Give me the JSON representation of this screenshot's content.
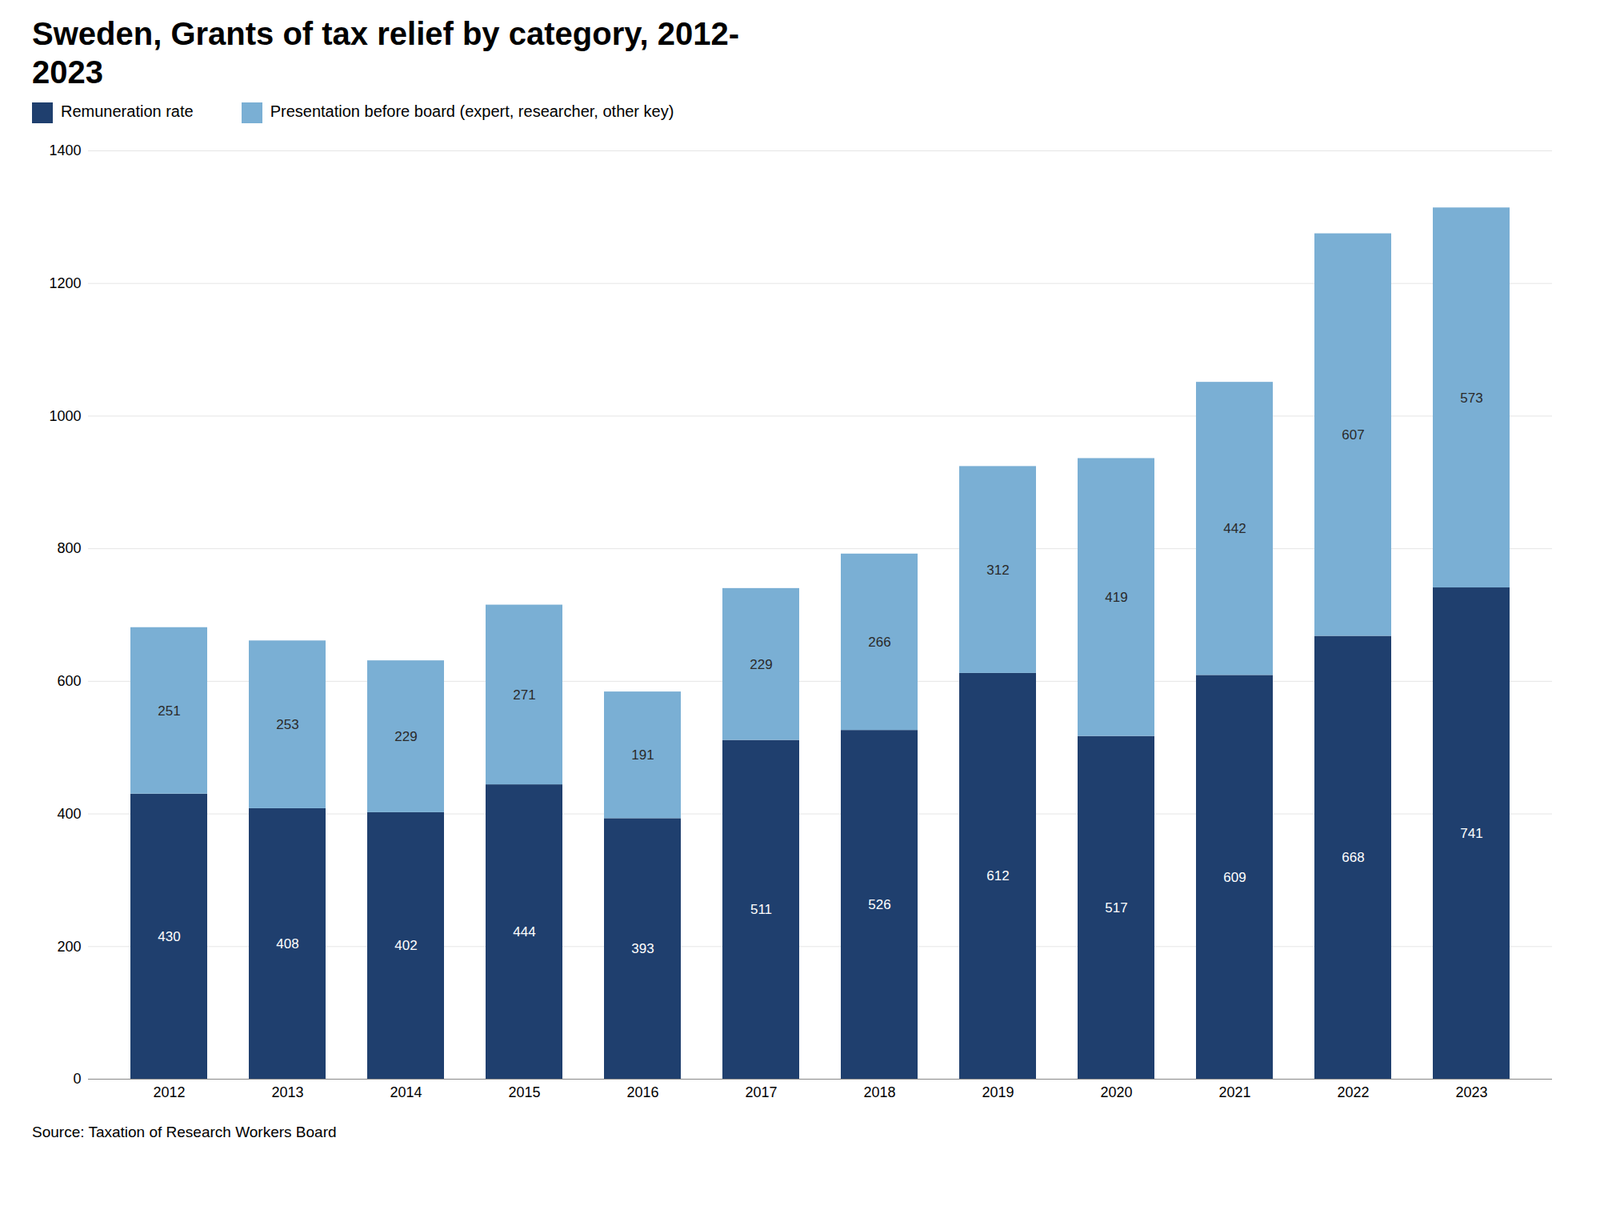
{
  "chart_data": {
    "type": "bar",
    "title": "Sweden, Grants of tax relief by category, 2012-\n2023",
    "caption": "Source: Taxation of Research Workers Board",
    "categories": [
      "2012",
      "2013",
      "2014",
      "2015",
      "2016",
      "2017",
      "2018",
      "2019",
      "2020",
      "2021",
      "2022",
      "2023"
    ],
    "series": [
      {
        "name": "Remuneration rate",
        "color": "#1f3f6e",
        "values": [
          430,
          408,
          402,
          444,
          393,
          511,
          526,
          612,
          517,
          609,
          668,
          741
        ]
      },
      {
        "name": "Presentation before board (expert, researcher, other key)",
        "color": "#7aafd4",
        "values": [
          251,
          253,
          229,
          271,
          191,
          229,
          266,
          312,
          419,
          442,
          607,
          573
        ]
      }
    ],
    "stacked": true,
    "data_labels": true,
    "grid": true,
    "legend": "top",
    "ylim": [
      0,
      1400
    ],
    "yticks": [
      0,
      200,
      400,
      600,
      800,
      1000,
      1200,
      1400
    ]
  }
}
